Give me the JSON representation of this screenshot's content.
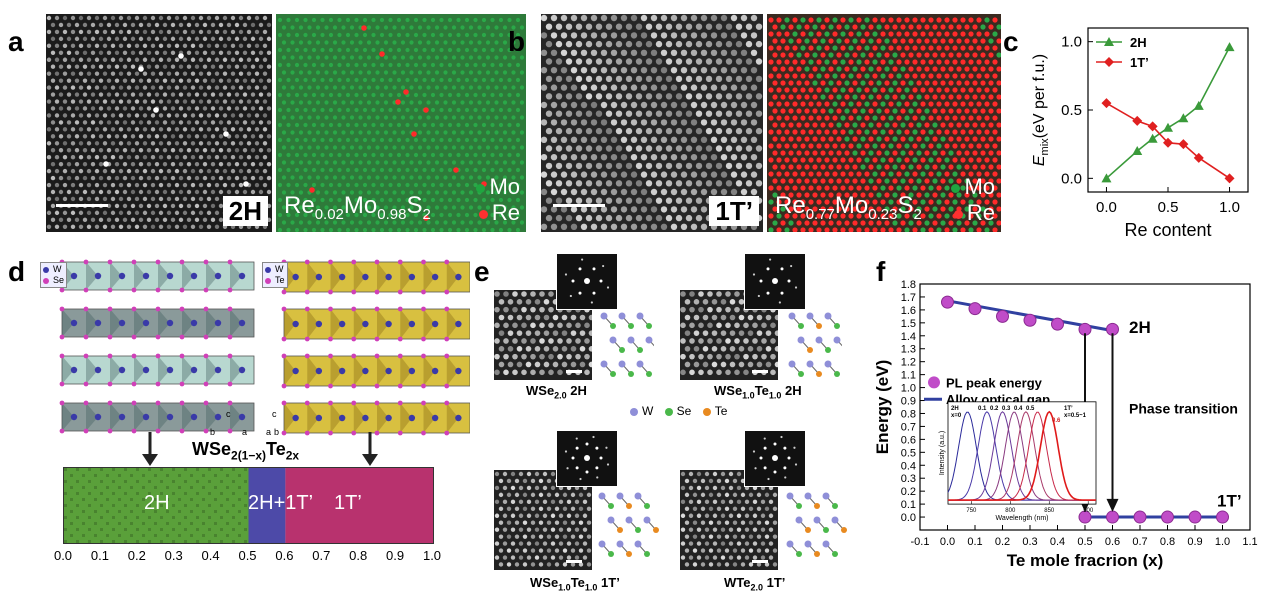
{
  "panels": {
    "a": {
      "label": "a",
      "tag": "2H",
      "formula": {
        "base1": "Re",
        "sub1": "0.02",
        "base2": "Mo",
        "sub2": "0.98",
        "base3": "S",
        "sub3": "2"
      },
      "legend": [
        "Mo",
        "Re"
      ]
    },
    "b": {
      "label": "b",
      "tag": "1T’",
      "formula": {
        "base1": "Re",
        "sub1": "0.77",
        "base2": "Mo",
        "sub2": "0.23",
        "base3": "S",
        "sub3": "2"
      },
      "legend": [
        "Mo",
        "Re"
      ]
    },
    "d": {
      "label": "d",
      "legend_left": [
        "W",
        "Se"
      ],
      "legend_right": [
        "W",
        "Te"
      ],
      "title_base": "WSe",
      "title_sub": "2(1−x)",
      "title_base2": "Te",
      "title_sub2": "2x",
      "regions": [
        "2H",
        "2H+1T’",
        "1T’"
      ],
      "ticks": [
        "0.0",
        "0.1",
        "0.2",
        "0.3",
        "0.4",
        "0.5",
        "0.6",
        "0.7",
        "0.8",
        "0.9",
        "1.0"
      ],
      "axes_small": [
        "c",
        "b",
        "a",
        "c",
        "a",
        "b"
      ]
    },
    "e": {
      "label": "e",
      "captions": [
        {
          "base": "WSe",
          "sub": "2.0",
          "rest": " 2H"
        },
        {
          "base": "WSe",
          "sub": "1.0",
          "base2": "Te",
          "sub2": "1.0",
          "rest": " 2H"
        },
        {
          "base": "WSe",
          "sub": "1.0",
          "base2": "Te",
          "sub2": "1.0",
          "rest": " 1T’"
        },
        {
          "base": "WTe",
          "sub": "2.0",
          "rest": " 1T’"
        }
      ],
      "legend": [
        "W",
        "Se",
        "Te"
      ]
    },
    "c": {
      "label": "c"
    },
    "f": {
      "label": "f"
    }
  },
  "colors": {
    "mo": "#1f8a3a",
    "re": "#e02020",
    "green_region": "#5aa03a",
    "purple_region": "#4d4aa8",
    "magenta_region": "#b8326e",
    "line2h": "#3a9a3a",
    "line1t": "#e02020",
    "pl": "#c04cc8",
    "gap": "#3040a0"
  },
  "chart_data": [
    {
      "type": "line",
      "panel": "c",
      "xlabel": "Re content",
      "ylabel_main": "E",
      "ylabel_sub": "mix",
      "ylabel_rest": "(eV per f.u.)",
      "xlim": [
        -0.15,
        1.15
      ],
      "ylim": [
        -0.1,
        1.1
      ],
      "xticks": [
        0.0,
        0.5,
        1.0
      ],
      "yticks": [
        0.0,
        0.5,
        1.0
      ],
      "xtick_labels": [
        "0.0",
        "0.5",
        "1.0"
      ],
      "ytick_labels": [
        "0.0",
        "0.5",
        "1.0"
      ],
      "legend_position": "top-left",
      "series": [
        {
          "name": "2H",
          "marker": "triangle",
          "x": [
            0.0,
            0.25,
            0.375,
            0.5,
            0.625,
            0.75,
            1.0
          ],
          "y": [
            0.0,
            0.2,
            0.29,
            0.37,
            0.44,
            0.53,
            0.96
          ]
        },
        {
          "name": "1T’",
          "marker": "diamond",
          "x": [
            0.0,
            0.25,
            0.375,
            0.5,
            0.625,
            0.75,
            1.0
          ],
          "y": [
            0.55,
            0.42,
            0.38,
            0.26,
            0.25,
            0.15,
            0.0
          ]
        }
      ]
    },
    {
      "type": "scatter",
      "panel": "f",
      "xlabel": "Te mole fracrion (x)",
      "ylabel": "Energy (eV)",
      "xlim": [
        -0.1,
        1.1
      ],
      "ylim": [
        -0.1,
        1.8
      ],
      "xticks": [
        -0.1,
        0.0,
        0.1,
        0.2,
        0.3,
        0.4,
        0.5,
        0.6,
        0.7,
        0.8,
        0.9,
        1.0,
        1.1
      ],
      "xtick_labels": [
        "-0.1",
        "0.0",
        "0.1",
        "0.2",
        "0.3",
        "0.4",
        "0.5",
        "0.6",
        "0.7",
        "0.8",
        "0.9",
        "1.0",
        "1.1"
      ],
      "yticks": [
        0.0,
        0.1,
        0.2,
        0.3,
        0.4,
        0.5,
        0.6,
        0.7,
        0.8,
        0.9,
        1.0,
        1.1,
        1.2,
        1.3,
        1.4,
        1.5,
        1.6,
        1.7,
        1.8
      ],
      "ytick_labels": [
        "0.0",
        "0.1",
        "0.2",
        "0.3",
        "0.4",
        "0.5",
        "0.6",
        "0.7",
        "0.8",
        "0.9",
        "1.0",
        "1.1",
        "1.2",
        "1.3",
        "1.4",
        "1.5",
        "1.6",
        "1.7",
        "1.8"
      ],
      "series": [
        {
          "name": "PL peak energy",
          "x": [
            0.0,
            0.1,
            0.2,
            0.3,
            0.4,
            0.5,
            0.6,
            0.5,
            0.6,
            0.7,
            0.8,
            0.9,
            1.0
          ],
          "y": [
            1.66,
            1.61,
            1.55,
            1.52,
            1.49,
            1.45,
            1.45,
            0.0,
            0.0,
            0.0,
            0.0,
            0.0,
            0.0
          ]
        },
        {
          "name": "Alloy optical gap",
          "segments": [
            {
              "x": [
                0.0,
                0.6
              ],
              "y": [
                1.67,
                1.44
              ]
            },
            {
              "x": [
                0.5,
                1.0
              ],
              "y": [
                0.0,
                0.0
              ]
            }
          ]
        }
      ],
      "annotations": [
        "2H",
        "1T’",
        "Phase transition"
      ],
      "inset": {
        "xlabel": "Wavelength (nm)",
        "ylabel": "Intensity (a.u.)",
        "xticks": [
          750,
          800,
          850,
          900
        ],
        "xlim": [
          720,
          910
        ],
        "labels": [
          "2H",
          "x=0",
          "0.1",
          "0.2",
          "0.3",
          "0.4",
          "0.5",
          "1T’",
          "x=0.5~1",
          "0.6"
        ],
        "peaks": [
          745,
          770,
          790,
          805,
          820,
          835,
          850
        ]
      }
    }
  ]
}
